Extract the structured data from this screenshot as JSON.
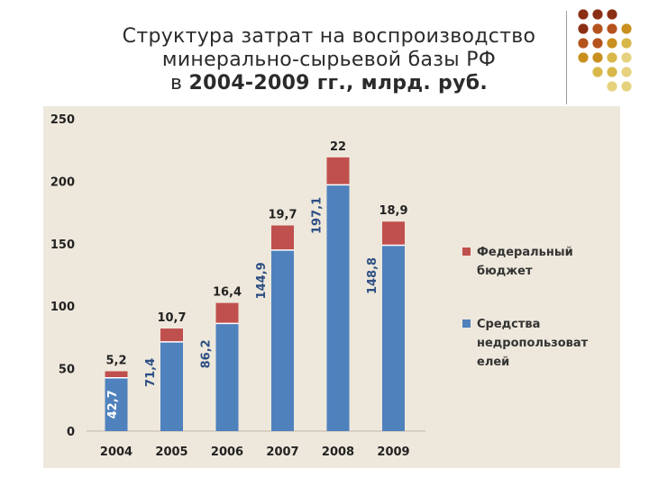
{
  "title": {
    "line1": "Структура затрат на воспроизводство",
    "line2": "минерально-сырьевой базы РФ",
    "line3_prefix": "в ",
    "line3_bold": "2004-2009 гг., млрд. руб."
  },
  "colors": {
    "federal": "#c0504d",
    "subsoil": "#4f81bd",
    "panel": "#eee8dc",
    "dot_palette": [
      "#8b2f14",
      "#b5531d",
      "#c9901f",
      "#d8b84a",
      "#e6d27e"
    ]
  },
  "chart_data": {
    "type": "bar",
    "stacked": true,
    "categories": [
      "2004",
      "2005",
      "2006",
      "2007",
      "2008",
      "2009"
    ],
    "series": [
      {
        "name": "Средства недропользователей",
        "values": [
          42.7,
          71.4,
          86.2,
          144.9,
          197.1,
          148.8
        ],
        "labels": [
          "42,7",
          "71,4",
          "86,2",
          "144,9",
          "197,1",
          "148,8"
        ]
      },
      {
        "name": "Федеральный бюджет",
        "values": [
          5.2,
          10.7,
          16.4,
          19.7,
          22,
          18.9
        ],
        "labels": [
          "5,2",
          "10,7",
          "16,4",
          "19,7",
          "22",
          "18,9"
        ]
      }
    ],
    "legend": [
      {
        "line1": "Федеральный",
        "line2": "бюджет",
        "series": 1
      },
      {
        "line1": "Средства",
        "line2": "недропользоват",
        "line3": "елей",
        "series": 0
      }
    ],
    "yticks": [
      "0",
      "50",
      "100",
      "150",
      "200",
      "250"
    ],
    "ylim": [
      0,
      250
    ],
    "legend_position": "right",
    "grid": false
  }
}
